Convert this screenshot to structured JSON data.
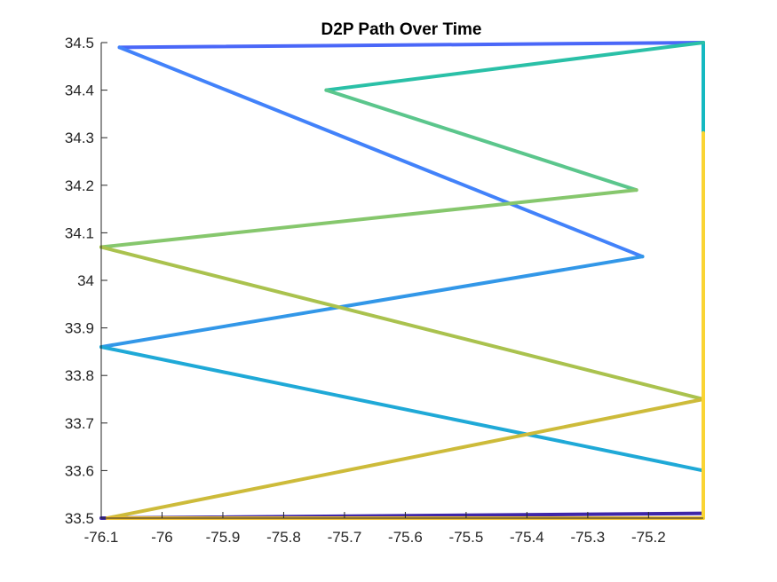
{
  "chart_data": {
    "type": "line",
    "title": "D2P Path Over Time",
    "xlabel": "",
    "ylabel": "",
    "xlim": [
      -76.1,
      -75.11
    ],
    "ylim": [
      33.5,
      34.5
    ],
    "x_ticks": [
      "-76.1",
      "-76",
      "-75.9",
      "-75.8",
      "-75.7",
      "-75.6",
      "-75.5",
      "-75.4",
      "-75.3",
      "-75.2"
    ],
    "y_ticks": [
      "33.5",
      "33.6",
      "33.7",
      "33.8",
      "33.9",
      "34",
      "34.1",
      "34.2",
      "34.3",
      "34.4",
      "34.5"
    ],
    "grid": false,
    "colormap": "parula",
    "path": [
      {
        "x": -76.1,
        "y": 33.5
      },
      {
        "x": -75.11,
        "y": 33.51
      },
      {
        "x": -75.11,
        "y": 34.5
      },
      {
        "x": -76.07,
        "y": 34.49
      },
      {
        "x": -75.21,
        "y": 34.05
      },
      {
        "x": -76.1,
        "y": 33.86
      },
      {
        "x": -75.11,
        "y": 33.6
      },
      {
        "x": -75.11,
        "y": 34.5
      },
      {
        "x": -75.73,
        "y": 34.4
      },
      {
        "x": -75.22,
        "y": 34.19
      },
      {
        "x": -76.1,
        "y": 34.07
      },
      {
        "x": -75.11,
        "y": 33.75
      },
      {
        "x": -76.09,
        "y": 33.5
      },
      {
        "x": -75.11,
        "y": 33.5
      },
      {
        "x": -75.11,
        "y": 34.31
      }
    ],
    "segment_colors": [
      "#3e26a8",
      "#4149e0",
      "#4a67f8",
      "#4282fa",
      "#3297e8",
      "#1fa9d7",
      "#14b9c1",
      "#2ac0a7",
      "#5bc68c",
      "#86c76d",
      "#aac24e",
      "#cdbb3a",
      "#eebf32",
      "#fad433",
      "#f9e41c"
    ]
  }
}
